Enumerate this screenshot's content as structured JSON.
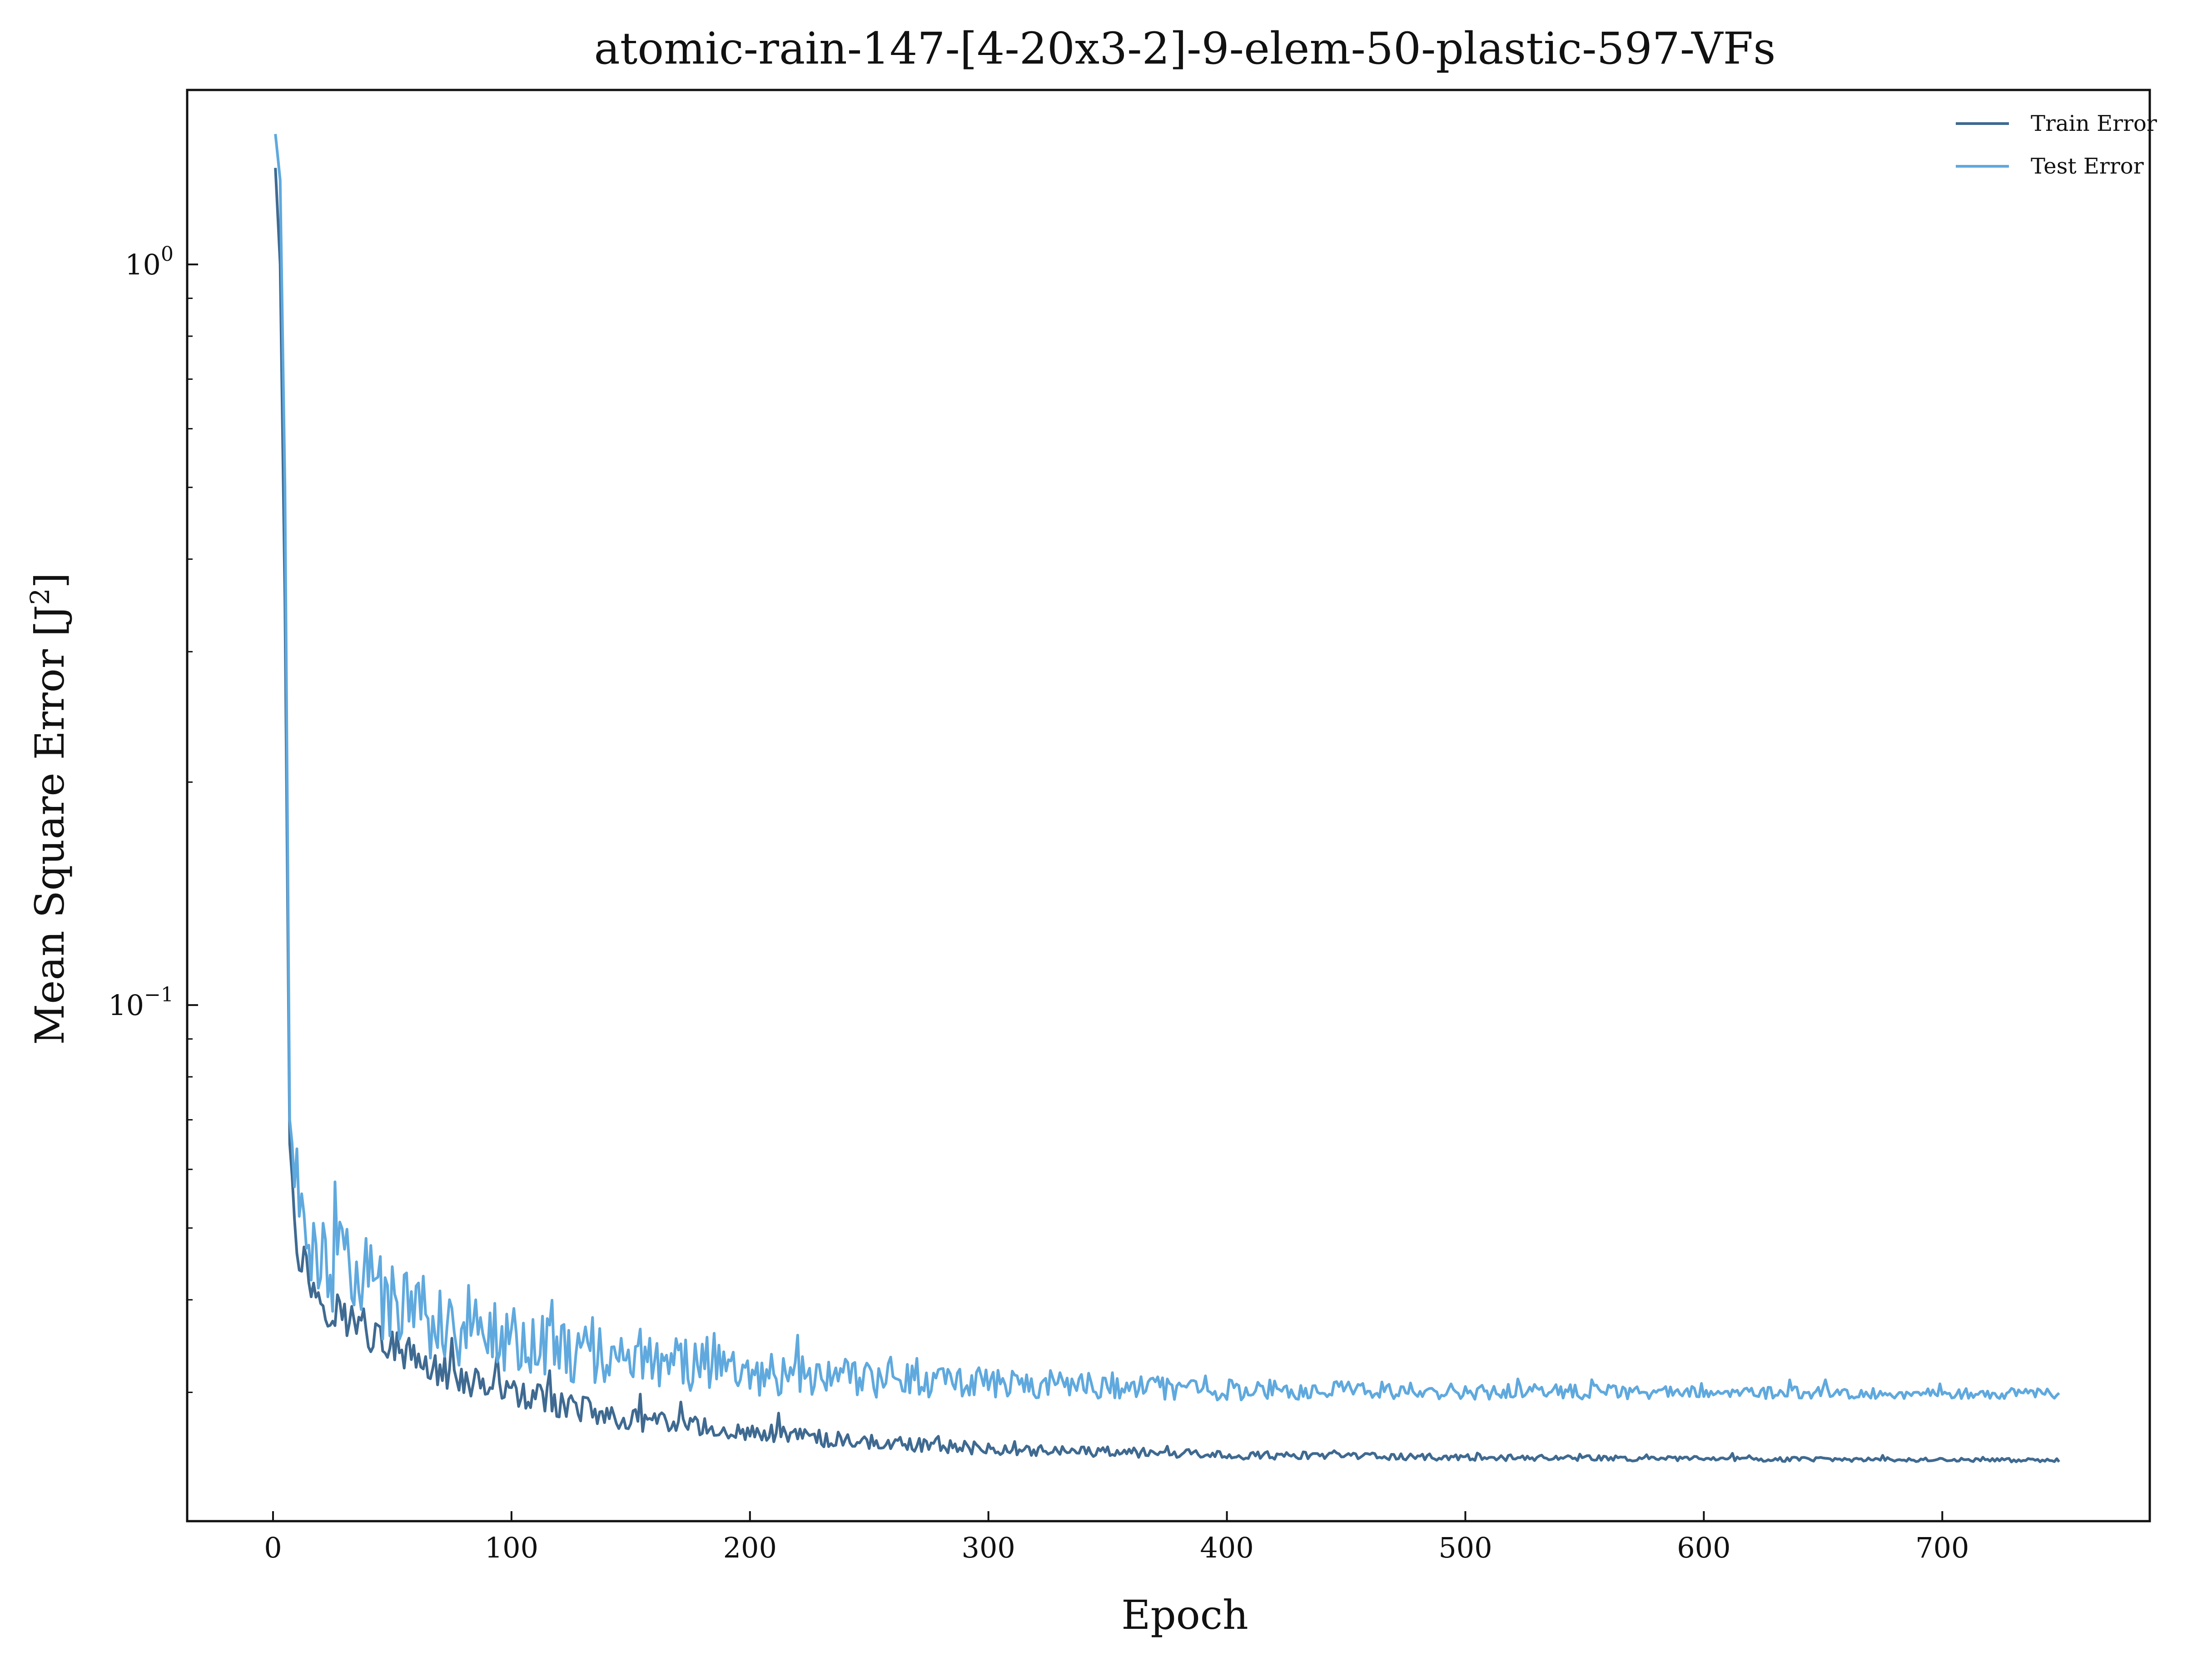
{
  "chart_data": {
    "type": "line",
    "title": "atomic-rain-147-[4-20x3-2]-9-elem-50-plastic-597-VFs",
    "xlabel": "Epoch",
    "ylabel_main": "Mean Square Error [J",
    "ylabel_sup": "2",
    "ylabel_close": "]",
    "xlim": [
      -36,
      787
    ],
    "ylim": [
      0.0201,
      1.72
    ],
    "yscale": "log",
    "grid": false,
    "legend_position": "top-right",
    "x_ticks": [
      0,
      100,
      200,
      300,
      400,
      500,
      600,
      700
    ],
    "x_tick_labels": [
      "0",
      "100",
      "200",
      "300",
      "400",
      "500",
      "600",
      "700"
    ],
    "y_ticks": [
      1.0,
      0.1
    ],
    "y_tick_labels": [
      {
        "base": "10",
        "exp": "0"
      },
      {
        "base": "10",
        "exp": "−1"
      }
    ],
    "series": [
      {
        "name": "Train Error",
        "color": "#3f6a91",
        "keypoints": [
          [
            1,
            1.35
          ],
          [
            3,
            1.0
          ],
          [
            5,
            0.35
          ],
          [
            7,
            0.065
          ],
          [
            10,
            0.048
          ],
          [
            15,
            0.043
          ],
          [
            20,
            0.04
          ],
          [
            30,
            0.038
          ],
          [
            50,
            0.0345
          ],
          [
            70,
            0.032
          ],
          [
            100,
            0.03
          ],
          [
            130,
            0.0285
          ],
          [
            150,
            0.0275
          ],
          [
            200,
            0.0265
          ],
          [
            250,
            0.0257
          ],
          [
            300,
            0.0252
          ],
          [
            350,
            0.0249
          ],
          [
            400,
            0.0247
          ],
          [
            500,
            0.0245
          ],
          [
            600,
            0.0244
          ],
          [
            700,
            0.0243
          ],
          [
            749,
            0.0243
          ]
        ]
      },
      {
        "name": "Test Error",
        "color": "#5fa9de",
        "keypoints": [
          [
            1,
            1.5
          ],
          [
            3,
            1.3
          ],
          [
            5,
            0.5
          ],
          [
            7,
            0.07
          ],
          [
            10,
            0.056
          ],
          [
            15,
            0.05
          ],
          [
            20,
            0.047
          ],
          [
            30,
            0.044
          ],
          [
            50,
            0.04
          ],
          [
            70,
            0.0375
          ],
          [
            100,
            0.0355
          ],
          [
            130,
            0.034
          ],
          [
            150,
            0.0335
          ],
          [
            200,
            0.032
          ],
          [
            250,
            0.0313
          ],
          [
            300,
            0.031
          ],
          [
            350,
            0.0306
          ],
          [
            400,
            0.0303
          ],
          [
            500,
            0.0301
          ],
          [
            600,
            0.03
          ],
          [
            700,
            0.0299
          ],
          [
            749,
            0.0299
          ]
        ]
      }
    ]
  }
}
